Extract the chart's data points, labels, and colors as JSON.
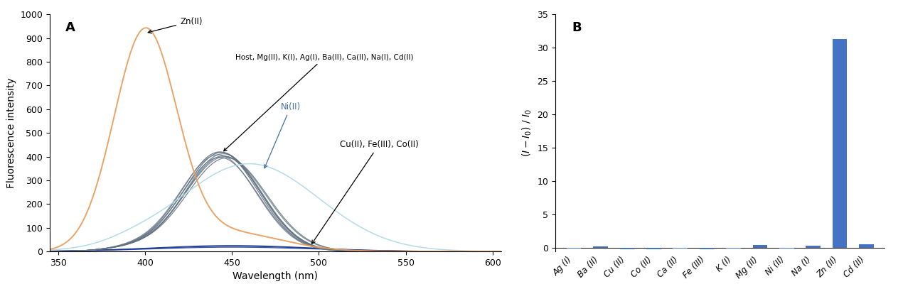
{
  "panel_A_label": "A",
  "panel_B_label": "B",
  "xlabel_A": "Wavelength (nm)",
  "ylabel_A": "Fluorescence intensity",
  "xlim_A": [
    345,
    605
  ],
  "ylim_A": [
    0,
    1000
  ],
  "yticks_A": [
    0,
    100,
    200,
    300,
    400,
    500,
    600,
    700,
    800,
    900,
    1000
  ],
  "xticks_A": [
    350,
    400,
    450,
    500,
    550,
    600
  ],
  "bar_categories": [
    "Ag (I)",
    "Ba (II)",
    "Cu (II)",
    "Co (II)",
    "Ca (II)",
    "Fe (III)",
    "K (I)",
    "Mg (II)",
    "Ni (II)",
    "Na (I)",
    "Zn (II)",
    "Cd (II)"
  ],
  "bar_values": [
    -0.07,
    0.22,
    -0.12,
    -0.14,
    -0.1,
    -0.12,
    -0.05,
    0.45,
    -0.09,
    0.35,
    31.3,
    0.6
  ],
  "bar_color": "#4472C4",
  "ylim_B": [
    -0.5,
    35
  ],
  "yticks_B": [
    0,
    5,
    10,
    15,
    20,
    25,
    30,
    35
  ],
  "zn_color": "#E8A060",
  "ni_color": "#ADD8E6",
  "host_colors": [
    "#5a6878",
    "#607580",
    "#6a7f8a",
    "#556070",
    "#647080",
    "#708090",
    "#5c6d7d",
    "#647585"
  ],
  "cu_color": "#1a3a6a",
  "fe_color": "#2040a0",
  "co_color": "#1530a0",
  "quench_color": "#0a2060"
}
